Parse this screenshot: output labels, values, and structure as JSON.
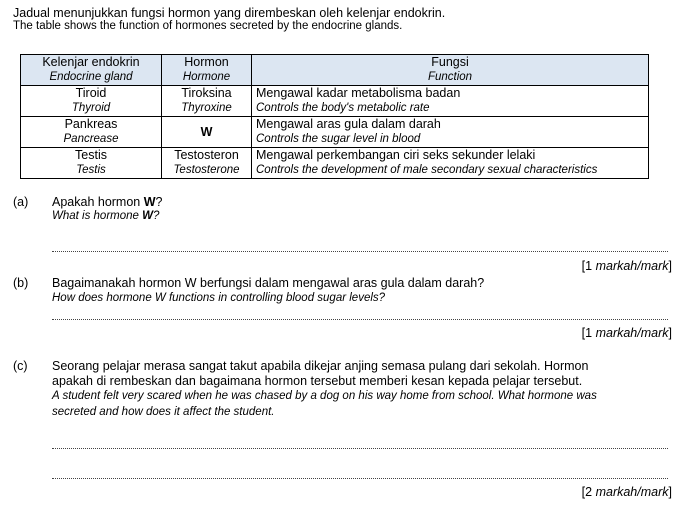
{
  "intro": {
    "malay": "Jadual  menunjukkan fungsi hormon yang dirembeskan oleh kelenjar endokrin.",
    "english": "The table shows the function of hormones secreted by the endocrine glands."
  },
  "table": {
    "header_bg": "#dce6f2",
    "headers": [
      {
        "malay": "Kelenjar endokrin",
        "english": "Endocrine gland"
      },
      {
        "malay": "Hormon",
        "english": "Hormone"
      },
      {
        "malay": "Fungsi",
        "english": "Function"
      }
    ],
    "rows": [
      {
        "gland": "Tiroid",
        "gland_en": "Thyroid",
        "hormone": "Tiroksina",
        "hormone_en": "Thyroxine",
        "function": "Mengawal kadar metabolisma badan",
        "function_en": "Controls the body's metabolic rate"
      },
      {
        "gland": "Pankreas",
        "gland_en": "Pancrease",
        "hormone": "W",
        "hormone_en": "",
        "function": "Mengawal aras gula dalam darah",
        "function_en": "Controls the sugar level in blood"
      },
      {
        "gland": "Testis",
        "gland_en": "Testis",
        "hormone": "Testosteron",
        "hormone_en": "Testosterone",
        "function": "Mengawal perkembangan ciri seks sekunder lelaki",
        "function_en": "Controls the development of male secondary sexual characteristics"
      }
    ]
  },
  "questions": {
    "a": {
      "label": "(a)",
      "malay_pre": "Apakah hormon ",
      "bold": "W",
      "post": "?",
      "english_pre": "What is hormone ",
      "english_bold": "W",
      "english_post": "?",
      "mark_open": "[1 ",
      "mark_italic": "markah/mark",
      "mark_close": "]"
    },
    "b": {
      "label": "(b)",
      "malay": "Bagaimanakah hormon W berfungsi dalam mengawal aras gula dalam darah?",
      "english": "How does hormone W functions in controlling blood sugar levels?",
      "mark_open": "[1 ",
      "mark_italic": "markah/mark",
      "mark_close": "]"
    },
    "c": {
      "label": "(c)",
      "malay_1": "Seorang pelajar merasa sangat takut apabila dikejar anjing semasa pulang dari sekolah. Hormon",
      "malay_2": "apakah di rembeskan dan bagaimana hormon tersebut memberi kesan kepada pelajar tersebut.",
      "english_1": "A student felt very scared when he was chased by a dog on his way home from school. What hormone was",
      "english_2": "secreted and how does it affect the student.",
      "mark_open": "[2 ",
      "mark_italic": "markah/mark",
      "mark_close": "]"
    }
  }
}
